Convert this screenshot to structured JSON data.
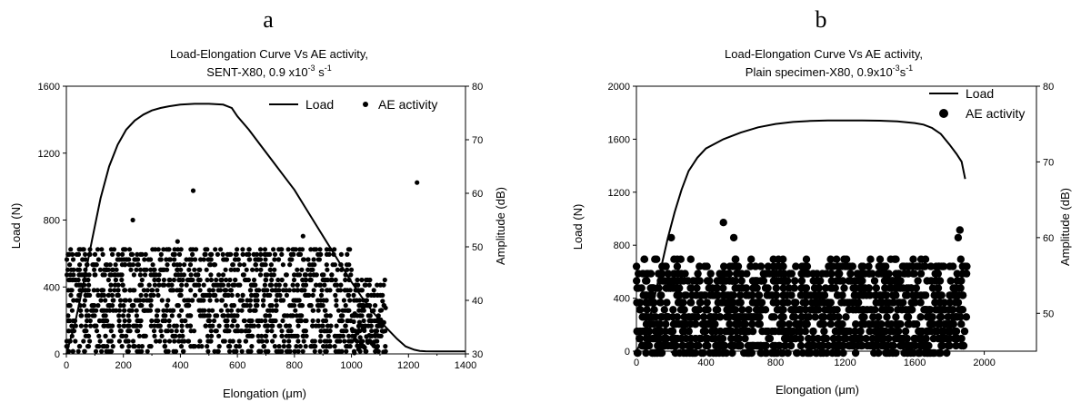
{
  "chart_data": [
    {
      "panel_label": "a",
      "type": "line+scatter",
      "title_lines": [
        "Load-Elongation Curve Vs AE activity,",
        "SENT-X80, 0.9 x10",
        "-3",
        " s",
        "-1"
      ],
      "title_line1": "Load-Elongation Curve Vs AE activity,",
      "title_line2_main": "SENT-X80, 0.9 x10",
      "title_line2_sup1": "-3",
      "title_line2_mid": " s",
      "title_line2_sup2": "-1",
      "xlabel": "Elongation (μm)",
      "ylabel": "Load (N)",
      "y2label": "Amplitude (dB)",
      "xlim": [
        0,
        1400
      ],
      "ylim": [
        0,
        1600
      ],
      "y2lim": [
        30,
        80
      ],
      "xticks": [
        "0",
        "200",
        "400",
        "600",
        "800",
        "1000",
        "1200",
        "1400"
      ],
      "yticks": [
        "0",
        "400",
        "800",
        "1200",
        "1600"
      ],
      "y2ticks": [
        "30",
        "40",
        "50",
        "60",
        "70",
        "80"
      ],
      "legend": {
        "placement": "top-right",
        "items": [
          "Load",
          "AE activity"
        ]
      },
      "load_curve": {
        "name": "Load",
        "x": [
          0,
          30,
          60,
          90,
          120,
          150,
          180,
          210,
          240,
          270,
          300,
          330,
          360,
          400,
          450,
          500,
          550,
          580,
          600,
          640,
          680,
          720,
          760,
          800,
          840,
          880,
          920,
          960,
          1000,
          1040,
          1080,
          1120,
          1160,
          1190,
          1220,
          1240,
          1260,
          1300,
          1350,
          1400
        ],
        "y": [
          0,
          180,
          420,
          680,
          930,
          1120,
          1250,
          1340,
          1395,
          1430,
          1455,
          1470,
          1480,
          1490,
          1495,
          1495,
          1490,
          1470,
          1420,
          1340,
          1250,
          1160,
          1070,
          980,
          870,
          760,
          650,
          540,
          430,
          330,
          240,
          160,
          90,
          45,
          25,
          18,
          16,
          15,
          15,
          15
        ]
      },
      "ae_activity": {
        "name": "AE activity",
        "x_range": [
          0,
          1120
        ],
        "amplitude_range_dB": [
          30,
          50
        ],
        "outliers": [
          [
            233,
            55
          ],
          [
            445,
            60.5
          ],
          [
            1230,
            62
          ],
          [
            830,
            52
          ],
          [
            390,
            51
          ]
        ]
      }
    },
    {
      "panel_label": "b",
      "type": "line+scatter",
      "title_line1": "Load-Elongation Curve Vs AE activity,",
      "title_line2_main": "Plain specimen-X80, 0.9x10",
      "title_line2_sup1": "-3",
      "title_line2_mid": "s",
      "title_line2_sup2": "-1",
      "xlabel": "Elongation (μm)",
      "ylabel": "Load (N)",
      "y2label": "Amplitude (dB)",
      "xlim": [
        0,
        2300
      ],
      "ylim": [
        0,
        2000
      ],
      "y2lim": [
        45,
        80
      ],
      "xticks": [
        "0",
        "400",
        "800",
        "1200",
        "1600",
        "2000"
      ],
      "yticks": [
        "0",
        "400",
        "800",
        "1200",
        "1600",
        "2000"
      ],
      "y2ticks": [
        "50",
        "60",
        "70",
        "80"
      ],
      "legend": {
        "placement": "top-right",
        "items": [
          "Load",
          "AE activity"
        ]
      },
      "load_curve": {
        "name": "Load",
        "x": [
          0,
          60,
          100,
          140,
          180,
          220,
          260,
          300,
          350,
          400,
          500,
          600,
          700,
          800,
          900,
          1000,
          1100,
          1200,
          1300,
          1400,
          1500,
          1600,
          1650,
          1700,
          1750,
          1800,
          1840,
          1870,
          1890
        ],
        "y": [
          0,
          150,
          380,
          620,
          850,
          1050,
          1220,
          1360,
          1460,
          1530,
          1600,
          1650,
          1690,
          1715,
          1730,
          1738,
          1742,
          1742,
          1742,
          1740,
          1735,
          1722,
          1710,
          1685,
          1640,
          1560,
          1490,
          1430,
          1300
        ]
      },
      "ae_activity": {
        "name": "AE activity",
        "x_range": [
          0,
          1900
        ],
        "amplitude_range_dB": [
          45,
          57
        ],
        "outliers": [
          [
            500,
            62
          ],
          [
            200,
            60
          ],
          [
            560,
            60
          ],
          [
            1860,
            61
          ],
          [
            1850,
            60
          ]
        ]
      }
    }
  ]
}
